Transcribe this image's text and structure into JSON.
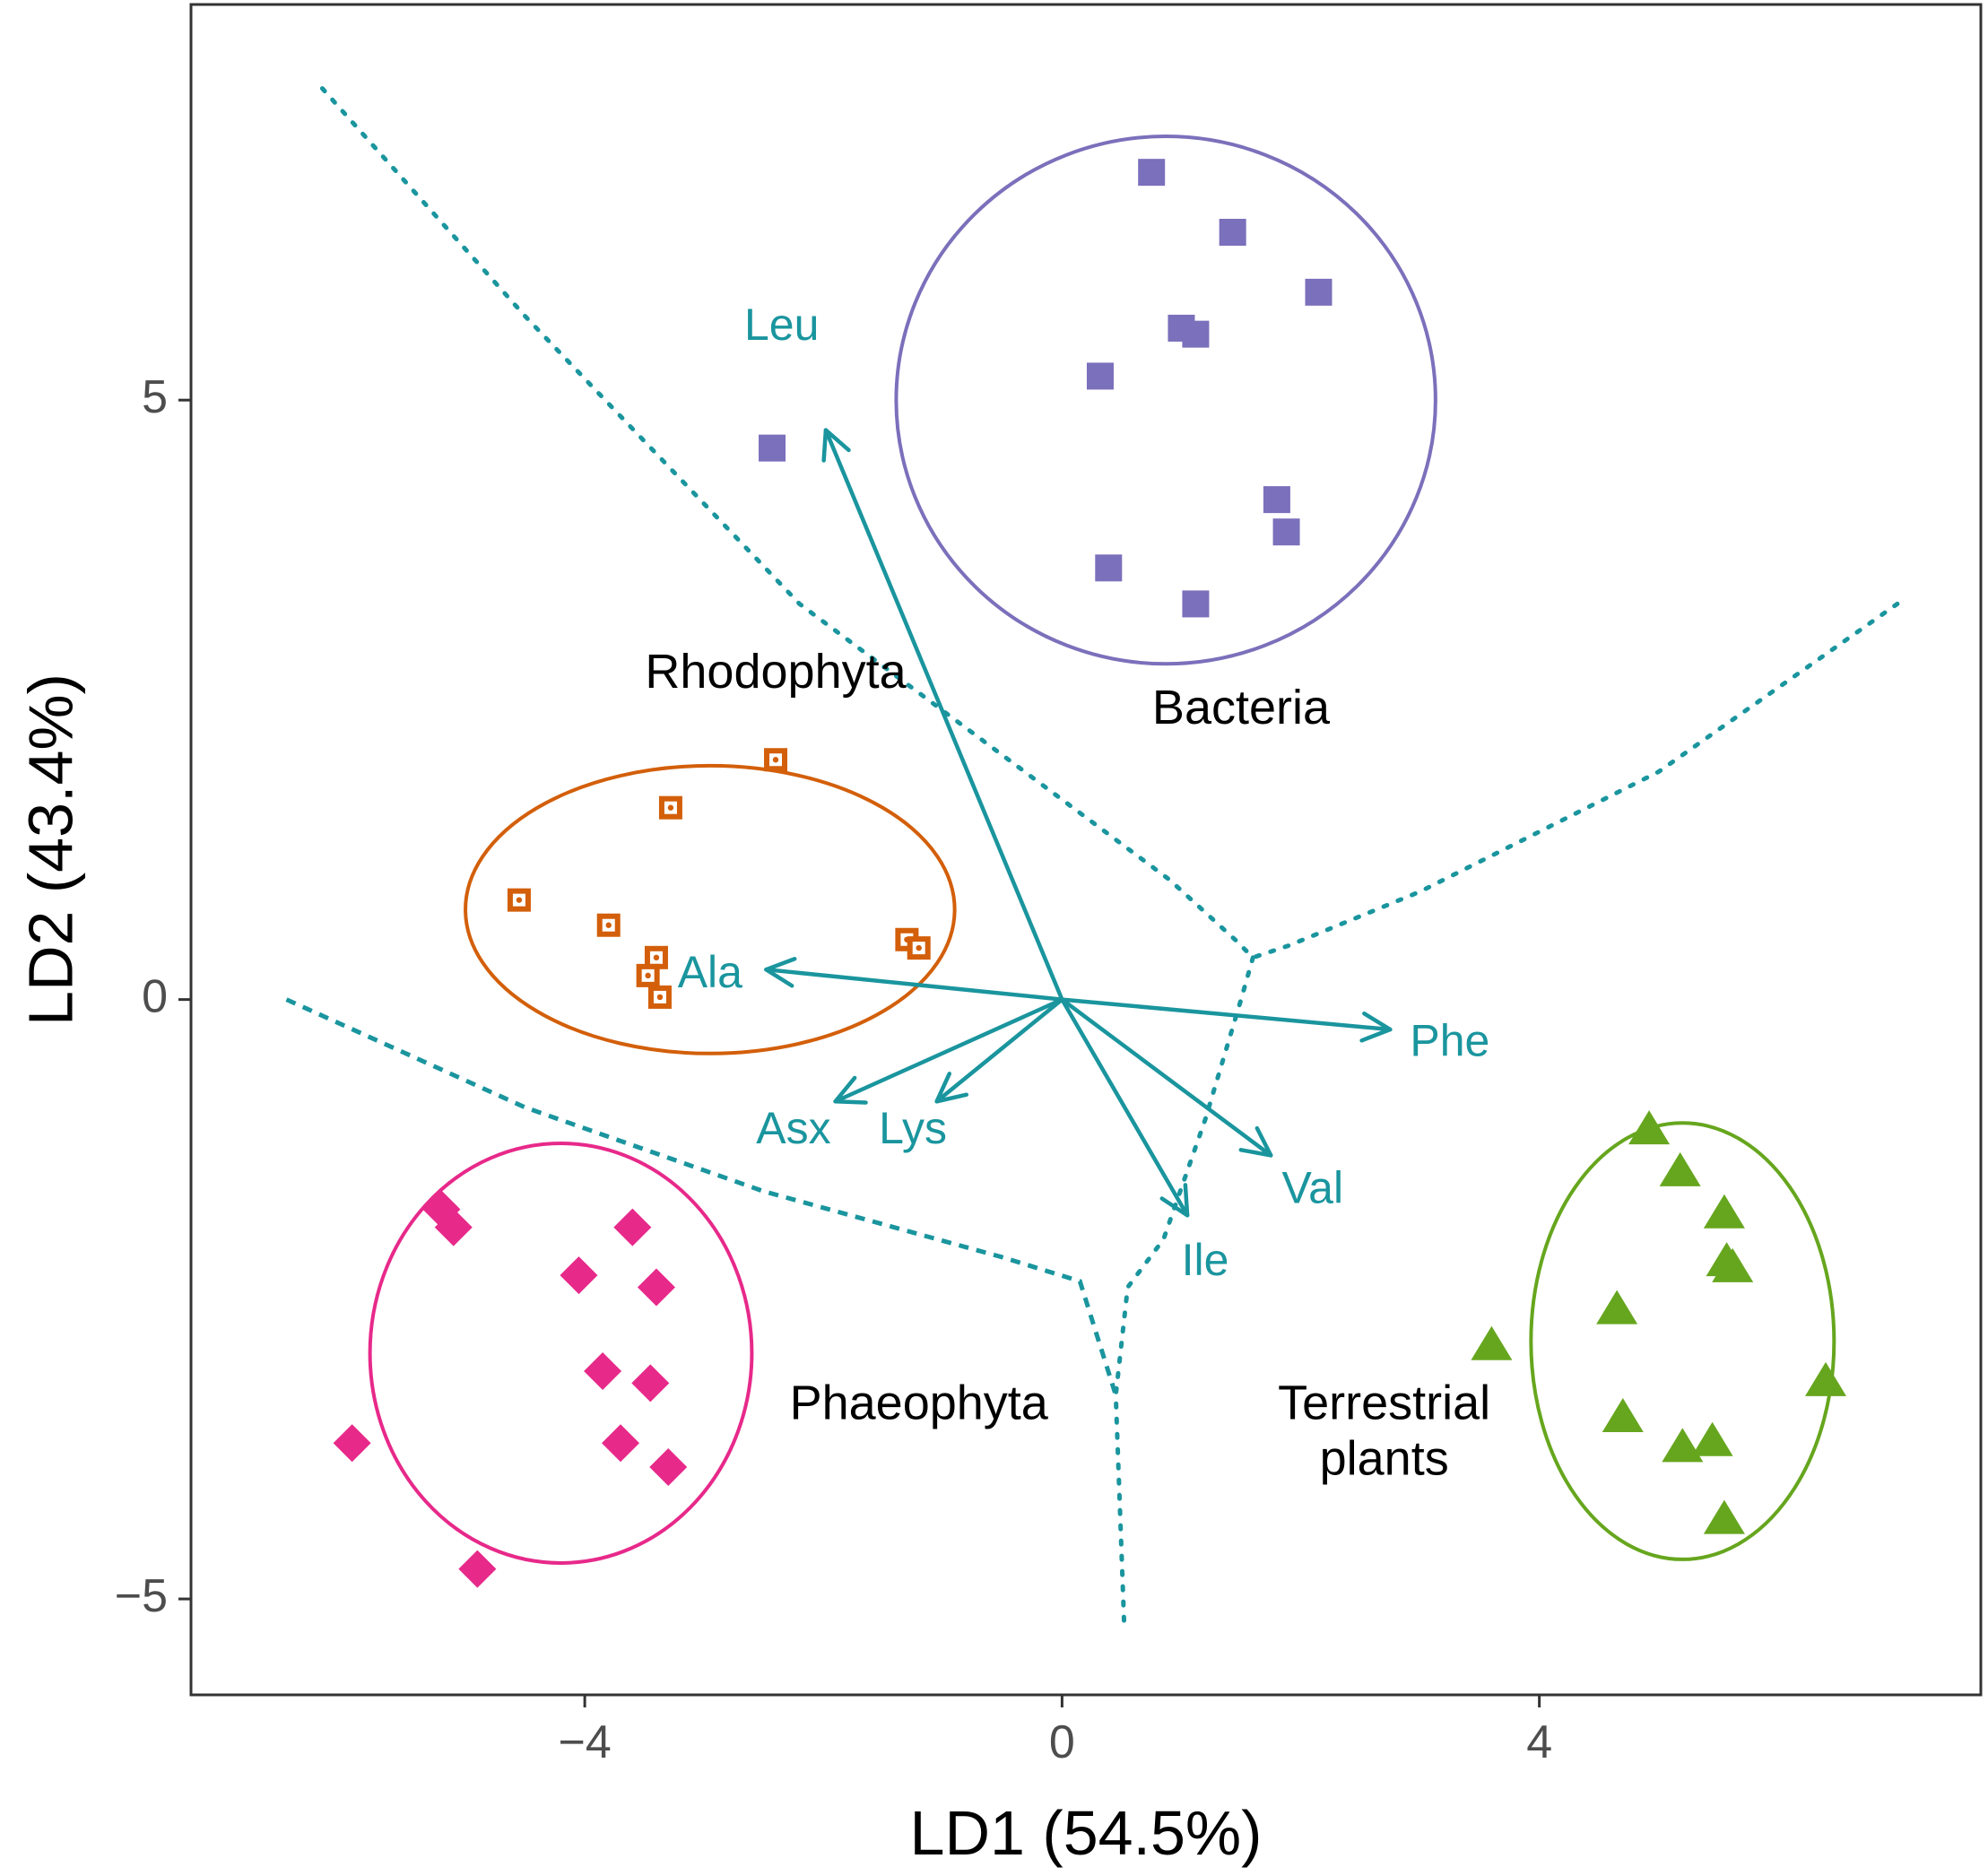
{
  "chart_data": {
    "type": "scatter",
    "xlabel": "LD1 (54.5%)",
    "ylabel": "LD2 (43.4%)",
    "xlim": [
      -7.3,
      7.7
    ],
    "ylim": [
      -5.8,
      8.3
    ],
    "xticks": [
      {
        "value": -4,
        "label": "−4"
      },
      {
        "value": 0,
        "label": "0"
      },
      {
        "value": 4,
        "label": "4"
      }
    ],
    "yticks": [
      {
        "value": -5,
        "label": "−5"
      },
      {
        "value": 0,
        "label": "0"
      },
      {
        "value": 5,
        "label": "5"
      }
    ],
    "grid": false,
    "colors": {
      "bacteria": "#7b70bb",
      "rhodophyta": "#d35f0a",
      "phaeophyta": "#e7298a",
      "terrestrial": "#66a61e",
      "loading": "#1a959e",
      "axis": "#333333",
      "tick_text": "#4d4d4d"
    },
    "groups": [
      {
        "name": "Bacteria",
        "label": "Bacteria",
        "marker": "square",
        "colorKey": "bacteria",
        "label_pos": [
          1.5,
          2.3
        ],
        "ellipse": {
          "cx": 0.87,
          "cy": 5.0,
          "rx": 2.26,
          "ry": 2.2
        },
        "points": [
          [
            0.75,
            6.9
          ],
          [
            1.43,
            6.4
          ],
          [
            2.15,
            5.9
          ],
          [
            1.0,
            5.6
          ],
          [
            1.12,
            5.55
          ],
          [
            0.32,
            5.2
          ],
          [
            -2.43,
            4.6
          ],
          [
            1.8,
            4.17
          ],
          [
            1.88,
            3.9
          ],
          [
            0.39,
            3.6
          ],
          [
            1.12,
            3.3
          ]
        ]
      },
      {
        "name": "Rhodophyta",
        "label": "Rhodophyta",
        "marker": "square-dotted",
        "colorKey": "rhodophyta",
        "label_pos": [
          -2.4,
          2.6
        ],
        "ellipse": {
          "cx": -2.95,
          "cy": 0.75,
          "rx": 2.05,
          "ry": 1.2
        },
        "points": [
          [
            -2.4,
            2.0
          ],
          [
            -3.28,
            1.6
          ],
          [
            -4.55,
            0.83
          ],
          [
            -3.8,
            0.62
          ],
          [
            -1.3,
            0.5
          ],
          [
            -1.2,
            0.43
          ],
          [
            -3.4,
            0.35
          ],
          [
            -3.47,
            0.2
          ],
          [
            -3.37,
            0.02
          ]
        ]
      },
      {
        "name": "Phaeophyta",
        "label": "Phaeophyta",
        "marker": "diamond",
        "colorKey": "phaeophyta",
        "label_pos": [
          -1.2,
          -3.5
        ],
        "ellipse": {
          "cx": -4.2,
          "cy": -2.95,
          "rx": 1.6,
          "ry": 1.75
        },
        "points": [
          [
            -5.2,
            -1.75
          ],
          [
            -5.1,
            -1.9
          ],
          [
            -3.6,
            -1.9
          ],
          [
            -4.05,
            -2.3
          ],
          [
            -3.4,
            -2.4
          ],
          [
            -3.85,
            -3.1
          ],
          [
            -3.45,
            -3.2
          ],
          [
            -3.7,
            -3.7
          ],
          [
            -3.3,
            -3.9
          ],
          [
            -5.95,
            -3.7
          ],
          [
            -4.9,
            -4.75
          ]
        ]
      },
      {
        "name": "Terrestrial plants",
        "label_lines": [
          "Terrestrial",
          "plants"
        ],
        "marker": "triangle",
        "colorKey": "terrestrial",
        "label_pos": [
          2.7,
          -3.5
        ],
        "ellipse": {
          "cx": 5.2,
          "cy": -2.85,
          "rx": 1.27,
          "ry": 1.82
        },
        "points": [
          [
            4.92,
            -1.1
          ],
          [
            5.18,
            -1.45
          ],
          [
            5.55,
            -1.8
          ],
          [
            5.62,
            -2.25
          ],
          [
            5.57,
            -2.2
          ],
          [
            4.65,
            -2.6
          ],
          [
            3.6,
            -2.9
          ],
          [
            6.4,
            -3.2
          ],
          [
            4.7,
            -3.5
          ],
          [
            5.2,
            -3.75
          ],
          [
            5.45,
            -3.7
          ],
          [
            5.55,
            -4.35
          ]
        ]
      }
    ],
    "loadings": [
      {
        "name": "Leu",
        "x": -1.98,
        "y": 4.75,
        "label_pos": [
          -2.35,
          5.6
        ]
      },
      {
        "name": "Ala",
        "x": -2.48,
        "y": 0.25,
        "label_pos": [
          -2.95,
          0.2
        ]
      },
      {
        "name": "Phe",
        "x": 2.75,
        "y": -0.25,
        "label_pos": [
          3.25,
          -0.37
        ]
      },
      {
        "name": "Asx",
        "x": -1.9,
        "y": -0.85,
        "label_pos": [
          -2.25,
          -1.1
        ]
      },
      {
        "name": "Lys",
        "x": -1.05,
        "y": -0.85,
        "label_pos": [
          -1.25,
          -1.1
        ]
      },
      {
        "name": "Val",
        "x": 1.75,
        "y": -1.3,
        "label_pos": [
          2.1,
          -1.6
        ]
      },
      {
        "name": "Ile",
        "x": 1.05,
        "y": -1.8,
        "label_pos": [
          1.2,
          -2.2
        ]
      }
    ],
    "boundaries": [
      {
        "style": "dotted",
        "points": [
          [
            -6.2,
            7.6
          ],
          [
            -4.5,
            5.7
          ],
          [
            -2.2,
            3.3
          ],
          [
            0.9,
            1.0
          ],
          [
            1.45,
            0.5
          ],
          [
            1.6,
            0.35
          ]
        ]
      },
      {
        "style": "dotted",
        "points": [
          [
            7.0,
            3.3
          ],
          [
            5.0,
            1.9
          ],
          [
            3.0,
            0.9
          ],
          [
            1.9,
            0.45
          ],
          [
            1.6,
            0.35
          ]
        ]
      },
      {
        "style": "dotted",
        "points": [
          [
            1.6,
            0.35
          ],
          [
            1.5,
            0.0
          ],
          [
            1.2,
            -1.0
          ],
          [
            0.85,
            -2.0
          ],
          [
            0.55,
            -2.4
          ],
          [
            0.45,
            -3.3
          ],
          [
            0.52,
            -5.2
          ]
        ]
      },
      {
        "style": "dashed",
        "points": [
          [
            -6.5,
            0.0
          ],
          [
            -4.5,
            -0.9
          ],
          [
            -2.5,
            -1.6
          ],
          [
            -0.5,
            -2.15
          ],
          [
            0.15,
            -2.35
          ],
          [
            0.45,
            -3.3
          ]
        ]
      }
    ]
  }
}
